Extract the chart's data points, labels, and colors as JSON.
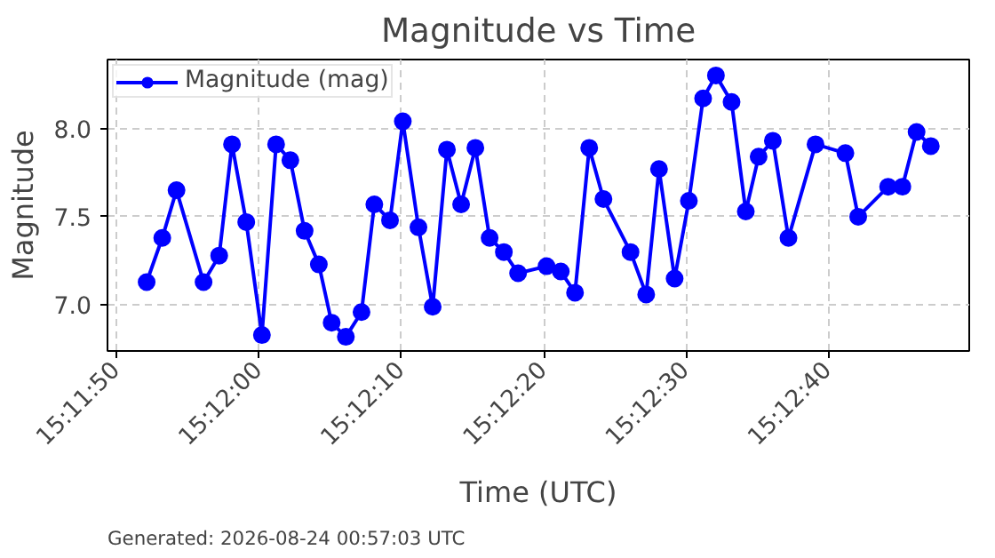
{
  "chart_data": {
    "type": "line",
    "title": "Magnitude vs Time",
    "xlabel": "Time (UTC)",
    "ylabel": "Magnitude",
    "annotations": [
      "Generated: 2026-08-24 00:57:03 UTC"
    ],
    "x": [
      15.197806,
      15.198111,
      15.198389,
      15.198917,
      15.199222,
      15.199472,
      15.19975,
      15.200056,
      15.200333,
      15.200611,
      15.200889,
      15.201167,
      15.201417,
      15.201694,
      15.202,
      15.20225,
      15.202556,
      15.202806,
      15.203111,
      15.203389,
      15.203667,
      15.203944,
      15.204222,
      15.2045,
      15.204778,
      15.205056,
      15.205611,
      15.205889,
      15.206167,
      15.206444,
      15.206722,
      15.20725,
      15.207556,
      15.207806,
      15.208111,
      15.208389,
      15.208667,
      15.208917,
      15.209222,
      15.2095,
      15.20975,
      15.210028,
      15.210333,
      15.210861,
      15.211444,
      15.211694,
      15.212278,
      15.212556,
      15.212833,
      15.213111
    ],
    "series": [
      {
        "name": "Magnitude (mag)",
        "color": "#0000ff",
        "values": [
          7.13,
          7.38,
          7.65,
          7.13,
          7.28,
          7.91,
          7.47,
          6.83,
          7.91,
          7.82,
          7.42,
          7.23,
          6.9,
          6.82,
          6.96,
          7.57,
          7.48,
          8.04,
          7.44,
          6.99,
          7.88,
          7.57,
          7.89,
          7.38,
          7.3,
          7.18,
          7.22,
          7.19,
          7.07,
          7.89,
          7.6,
          7.3,
          7.06,
          7.77,
          7.15,
          7.59,
          8.17,
          8.3,
          8.15,
          7.53,
          7.84,
          7.93,
          7.38,
          7.91,
          7.86,
          7.5,
          7.67,
          7.67,
          7.98,
          7.9
        ]
      }
    ],
    "xlim": [
      15.197042,
      15.213861
    ],
    "xticks": [
      {
        "value": 15.197222,
        "label": "15:11:50"
      },
      {
        "value": 15.2,
        "label": "15:12:00"
      },
      {
        "value": 15.202778,
        "label": "15:12:10"
      },
      {
        "value": 15.205556,
        "label": "15:12:20"
      },
      {
        "value": 15.208333,
        "label": "15:12:30"
      },
      {
        "value": 15.211111,
        "label": "15:12:40"
      }
    ],
    "ylim": [
      6.74,
      8.39
    ],
    "yticks": [
      {
        "value": 7.0,
        "label": "7.0"
      },
      {
        "value": 7.5,
        "label": "7.5"
      },
      {
        "value": 8.0,
        "label": "8.0"
      }
    ],
    "grid": true,
    "legend": "top left",
    "marker": "circle",
    "line_style": "solid"
  }
}
